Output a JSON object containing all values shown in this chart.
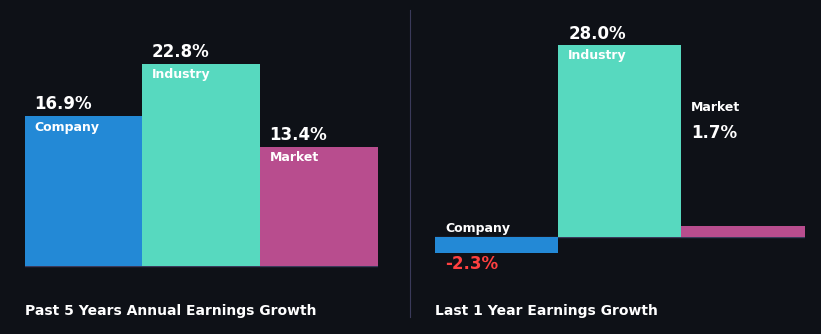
{
  "background_color": "#0e1117",
  "chart1": {
    "title": "Past 5 Years Annual Earnings Growth",
    "bars": [
      {
        "label": "Company",
        "value": 16.9,
        "color": "#2389d6"
      },
      {
        "label": "Industry",
        "value": 22.8,
        "color": "#57d9bf"
      },
      {
        "label": "Market",
        "value": 13.4,
        "color": "#b84d8e"
      }
    ]
  },
  "chart2": {
    "title": "Last 1 Year Earnings Growth",
    "bars": [
      {
        "label": "Company",
        "value": -2.3,
        "color": "#2389d6"
      },
      {
        "label": "Industry",
        "value": 28.0,
        "color": "#57d9bf"
      },
      {
        "label": "Market",
        "value": 1.7,
        "color": "#b84d8e"
      }
    ]
  },
  "value_fontsize": 12,
  "label_fontsize": 9,
  "title_fontsize": 10,
  "title_color": "#ffffff",
  "value_color_positive": "#ffffff",
  "value_color_negative": "#ff4040",
  "label_color": "#ffffff",
  "axis_line_color": "#3a3a5a"
}
